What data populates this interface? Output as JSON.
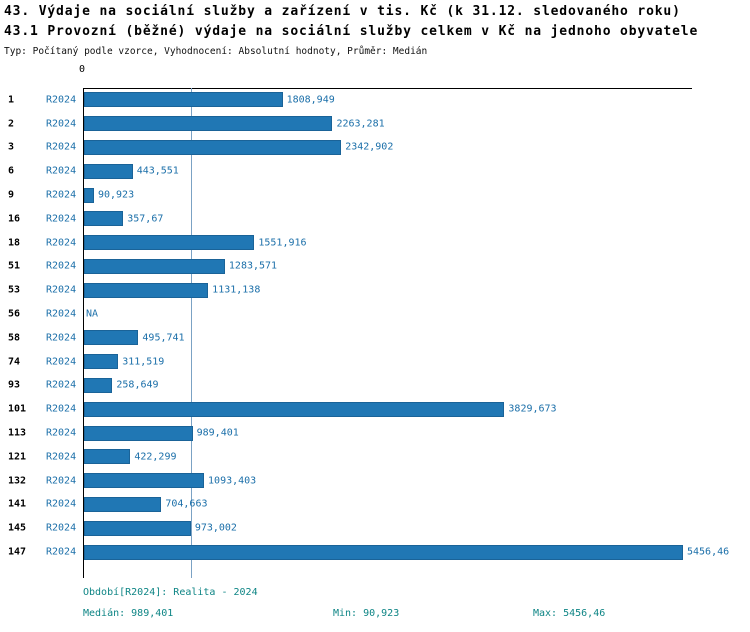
{
  "colors": {
    "bar_fill": "#2077b4",
    "bar_border": "#1a6398",
    "label_blue": "#1b6fa9",
    "footer_teal": "#0e8585",
    "median_line": "#7ba2c4",
    "axis": "#000000"
  },
  "header": {
    "title": "43. Výdaje na sociální služby a zařízení v tis. Kč (k 31.12. sledovaného roku)",
    "subtitle": "43.1 Provozní (běžné) výdaje na sociální služby celkem v Kč na jednoho obyvatele",
    "meta": "Typ: Počítaný podle vzorce, Vyhodnocení: Absolutní hodnoty, Průměr: Medián"
  },
  "chart_data": {
    "type": "bar",
    "orientation": "horizontal",
    "series_label": "R2024",
    "x_axis": {
      "origin_label": "0",
      "min": 0,
      "max": 5456.46
    },
    "median": 989.401,
    "grid": "median-line-only",
    "rows": [
      {
        "id": "1",
        "period": "R2024",
        "value": 1808.949,
        "value_label": "1808,949"
      },
      {
        "id": "2",
        "period": "R2024",
        "value": 2263.281,
        "value_label": "2263,281"
      },
      {
        "id": "3",
        "period": "R2024",
        "value": 2342.902,
        "value_label": "2342,902"
      },
      {
        "id": "6",
        "period": "R2024",
        "value": 443.551,
        "value_label": "443,551"
      },
      {
        "id": "9",
        "period": "R2024",
        "value": 90.923,
        "value_label": "90,923"
      },
      {
        "id": "16",
        "period": "R2024",
        "value": 357.67,
        "value_label": "357,67"
      },
      {
        "id": "18",
        "period": "R2024",
        "value": 1551.916,
        "value_label": "1551,916"
      },
      {
        "id": "51",
        "period": "R2024",
        "value": 1283.571,
        "value_label": "1283,571"
      },
      {
        "id": "53",
        "period": "R2024",
        "value": 1131.138,
        "value_label": "1131,138"
      },
      {
        "id": "56",
        "period": "R2024",
        "value": null,
        "value_label": "NA"
      },
      {
        "id": "58",
        "period": "R2024",
        "value": 495.741,
        "value_label": "495,741"
      },
      {
        "id": "74",
        "period": "R2024",
        "value": 311.519,
        "value_label": "311,519"
      },
      {
        "id": "93",
        "period": "R2024",
        "value": 258.649,
        "value_label": "258,649"
      },
      {
        "id": "101",
        "period": "R2024",
        "value": 3829.673,
        "value_label": "3829,673"
      },
      {
        "id": "113",
        "period": "R2024",
        "value": 989.401,
        "value_label": "989,401"
      },
      {
        "id": "121",
        "period": "R2024",
        "value": 422.299,
        "value_label": "422,299"
      },
      {
        "id": "132",
        "period": "R2024",
        "value": 1093.403,
        "value_label": "1093,403"
      },
      {
        "id": "141",
        "period": "R2024",
        "value": 704.663,
        "value_label": "704,663"
      },
      {
        "id": "145",
        "period": "R2024",
        "value": 973.002,
        "value_label": "973,002"
      },
      {
        "id": "147",
        "period": "R2024",
        "value": 5456.46,
        "value_label": "5456,46"
      }
    ]
  },
  "footer": {
    "period": "Období[R2024]: Realita - 2024",
    "median": "Medián: 989,401",
    "min": "Min: 90,923",
    "max": "Max: 5456,46"
  }
}
